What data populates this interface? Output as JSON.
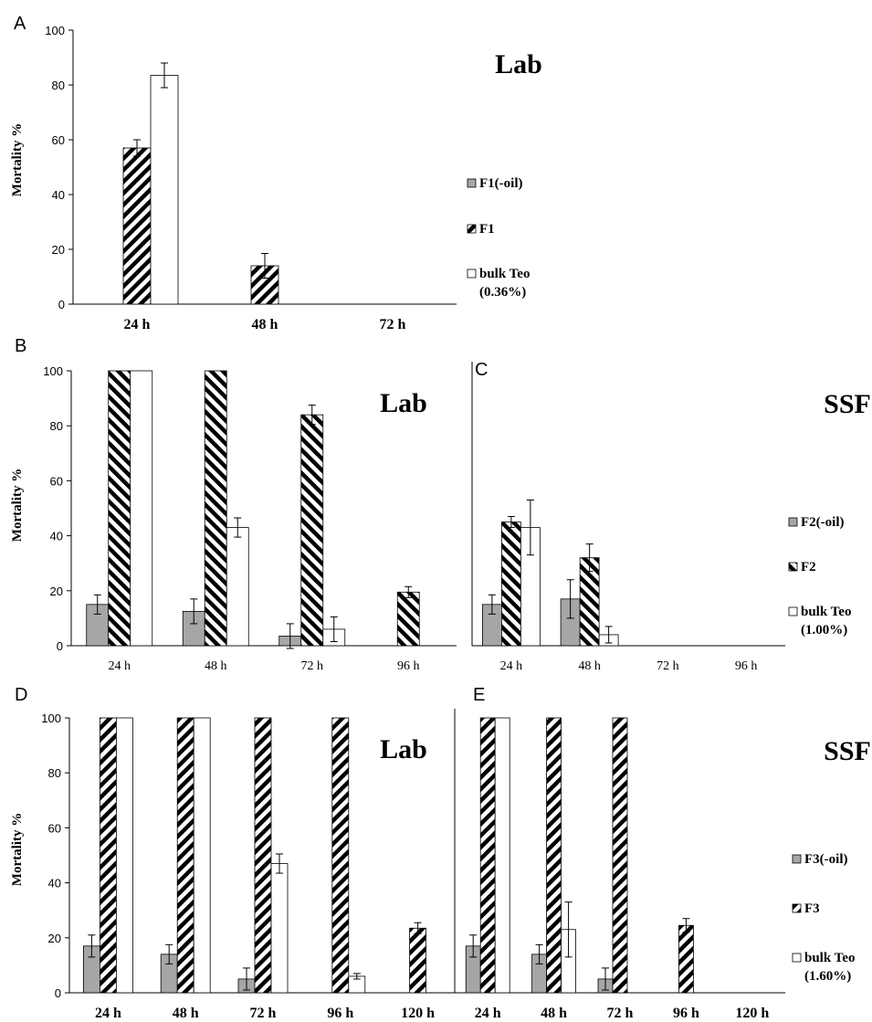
{
  "figure": {
    "panels": [
      {
        "id": "A",
        "letter": "A",
        "title": "Lab",
        "ylabel": "Mortality %"
      },
      {
        "id": "B",
        "letter": "B",
        "title": "Lab",
        "ylabel": "Mortality %"
      },
      {
        "id": "C",
        "letter": "C",
        "title": "SSF",
        "ylabel": ""
      },
      {
        "id": "D",
        "letter": "D",
        "title": "Lab",
        "ylabel": "Mortality %"
      },
      {
        "id": "E",
        "letter": "E",
        "title": "SSF",
        "ylabel": ""
      }
    ],
    "legends": [
      {
        "id": "A",
        "entries": [
          {
            "label": "F1(-oil)",
            "fill": "gray"
          },
          {
            "label": "F1",
            "fill": "hatch-back"
          },
          {
            "label": "bulk Teo",
            "label2": "(0.36%)",
            "fill": "white"
          }
        ]
      },
      {
        "id": "BC",
        "entries": [
          {
            "label": "F2(-oil)",
            "fill": "gray"
          },
          {
            "label": "F2",
            "fill": "hatch-fwd"
          },
          {
            "label": "bulk Teo",
            "label2": "(1.00%)",
            "fill": "white"
          }
        ]
      },
      {
        "id": "DE",
        "entries": [
          {
            "label": "F3(-oil)",
            "fill": "gray"
          },
          {
            "label": "F3",
            "fill": "hatch-back"
          },
          {
            "label": "bulk Teo",
            "label2": "(1.60%)",
            "fill": "white"
          }
        ]
      }
    ]
  },
  "chart_data": [
    {
      "panel": "A",
      "type": "bar",
      "title": "Lab",
      "ylabel": "Mortality %",
      "xlabel": "",
      "ylim": [
        0,
        100
      ],
      "yticks": [
        0,
        20,
        40,
        60,
        80,
        100
      ],
      "grid": false,
      "categories": [
        "24 h",
        "48 h",
        "72 h"
      ],
      "series": [
        {
          "name": "F1(-oil)",
          "values": [
            0,
            0,
            0
          ],
          "errors": [
            0,
            0,
            0
          ],
          "color": "#a6a6a6"
        },
        {
          "name": "F1",
          "values": [
            57,
            14,
            0
          ],
          "errors": [
            3,
            4.5,
            0
          ],
          "color": "#000000"
        },
        {
          "name": "bulk Teo (0.36%)",
          "values": [
            83.5,
            0,
            0
          ],
          "errors": [
            4.5,
            0,
            0
          ],
          "color": "#ffffff"
        }
      ],
      "legend": "right"
    },
    {
      "panel": "B",
      "type": "bar",
      "title": "Lab",
      "ylabel": "Mortality %",
      "xlabel": "",
      "ylim": [
        0,
        100
      ],
      "yticks": [
        0,
        20,
        40,
        60,
        80,
        100
      ],
      "grid": false,
      "categories": [
        "24 h",
        "48 h",
        "72 h",
        "96 h"
      ],
      "series": [
        {
          "name": "F2(-oil)",
          "values": [
            15,
            12.5,
            3.5,
            0
          ],
          "errors": [
            3.5,
            4.5,
            4.5,
            0
          ],
          "color": "#a6a6a6"
        },
        {
          "name": "F2",
          "values": [
            100,
            100,
            84,
            19.5
          ],
          "errors": [
            0,
            0,
            3.5,
            2
          ],
          "color": "#000000"
        },
        {
          "name": "bulk Teo (1.00%)",
          "values": [
            100,
            43,
            6,
            0
          ],
          "errors": [
            0,
            3.5,
            4.5,
            0
          ],
          "color": "#ffffff"
        }
      ],
      "legend": "right"
    },
    {
      "panel": "C",
      "type": "bar",
      "title": "SSF",
      "ylabel": "",
      "xlabel": "",
      "ylim": [
        0,
        100
      ],
      "grid": false,
      "categories": [
        "24 h",
        "48 h",
        "72 h",
        "96 h"
      ],
      "series": [
        {
          "name": "F2(-oil)",
          "values": [
            15,
            17,
            0,
            0
          ],
          "errors": [
            3.5,
            7,
            0,
            0
          ],
          "color": "#a6a6a6"
        },
        {
          "name": "F2",
          "values": [
            45,
            32,
            0,
            0
          ],
          "errors": [
            2,
            5,
            0,
            0
          ],
          "color": "#000000"
        },
        {
          "name": "bulk Teo (1.00%)",
          "values": [
            43,
            4,
            0,
            0
          ],
          "errors": [
            10,
            3,
            0,
            0
          ],
          "color": "#ffffff"
        }
      ],
      "legend": "right"
    },
    {
      "panel": "D",
      "type": "bar",
      "title": "Lab",
      "ylabel": "Mortality %",
      "xlabel": "",
      "ylim": [
        0,
        100
      ],
      "yticks": [
        0,
        20,
        40,
        60,
        80,
        100
      ],
      "grid": false,
      "categories": [
        "24 h",
        "48 h",
        "72 h",
        "96 h",
        "120 h"
      ],
      "series": [
        {
          "name": "F3(-oil)",
          "values": [
            17,
            14,
            5,
            0,
            0
          ],
          "errors": [
            4,
            3.5,
            4,
            0,
            0
          ],
          "color": "#a6a6a6"
        },
        {
          "name": "F3",
          "values": [
            100,
            100,
            100,
            100,
            23.5
          ],
          "errors": [
            0,
            0,
            0,
            0,
            2
          ],
          "color": "#000000"
        },
        {
          "name": "bulk Teo (1.60%)",
          "values": [
            100,
            100,
            47,
            6,
            0
          ],
          "errors": [
            0,
            0,
            3.5,
            1,
            0
          ],
          "color": "#ffffff"
        }
      ],
      "legend": "right"
    },
    {
      "panel": "E",
      "type": "bar",
      "title": "SSF",
      "ylabel": "",
      "xlabel": "",
      "ylim": [
        0,
        100
      ],
      "grid": false,
      "categories": [
        "24 h",
        "48 h",
        "72 h",
        "96 h",
        "120 h"
      ],
      "series": [
        {
          "name": "F3(-oil)",
          "values": [
            17,
            14,
            5,
            0,
            0
          ],
          "errors": [
            4,
            3.5,
            4,
            0,
            0
          ],
          "color": "#a6a6a6"
        },
        {
          "name": "F3",
          "values": [
            100,
            100,
            100,
            24.5,
            0
          ],
          "errors": [
            0,
            0,
            0,
            2.5,
            0
          ],
          "color": "#000000"
        },
        {
          "name": "bulk Teo (1.60%)",
          "values": [
            100,
            23,
            0,
            0,
            0
          ],
          "errors": [
            0,
            10,
            0,
            0,
            0
          ],
          "color": "#ffffff"
        }
      ],
      "legend": "right"
    }
  ]
}
